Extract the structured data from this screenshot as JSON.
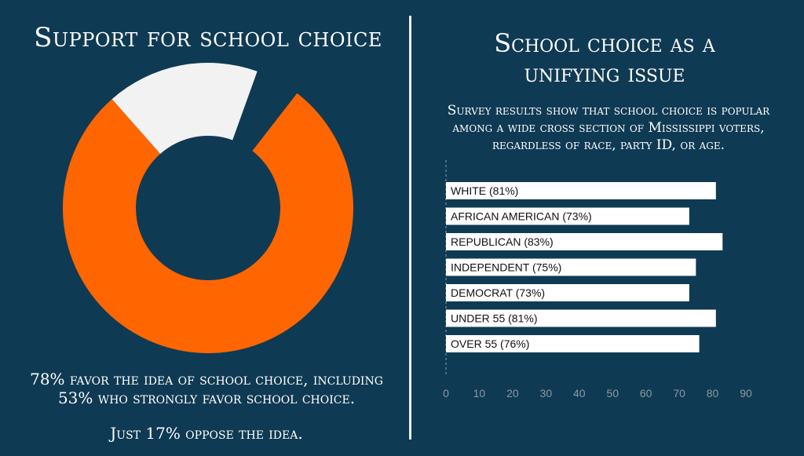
{
  "left": {
    "title": "Support for school choice",
    "caption_line1": "78% favor the idea of school choice, including",
    "caption_line2": "53% who strongly favor school choice.",
    "caption_oppose": "Just 17% oppose the idea."
  },
  "right": {
    "title_line1": "School choice as a",
    "title_line2": "unifying issue",
    "subtitle_line1": "Survey results show that school choice is popular",
    "subtitle_line2": "among a wide cross section of Mississippi voters,",
    "subtitle_line3": "regardless of race, party ID, or age."
  },
  "colors": {
    "background": "#0f3a53",
    "favor": "#ff6600",
    "oppose": "#f2f2f2",
    "bar": "#ffffff"
  },
  "chart_data": [
    {
      "type": "pie",
      "donut": true,
      "slices": [
        {
          "name": "favor",
          "value": 78,
          "color": "#ff6600"
        },
        {
          "name": "oppose",
          "value": 17,
          "color": "#f2f2f2"
        }
      ]
    },
    {
      "type": "bar",
      "orientation": "horizontal",
      "categories": [
        "WHITE (81%)",
        "AFRICAN AMERICAN (73%)",
        "REPUBLICAN (83%)",
        "INDEPENDENT (75%)",
        "DEMOCRAT (73%)",
        "UNDER 55 (81%)",
        "OVER 55 (76%)"
      ],
      "values": [
        81,
        73,
        83,
        75,
        73,
        81,
        76
      ],
      "xlim": [
        0,
        90
      ],
      "xticks": [
        0,
        10,
        20,
        30,
        40,
        50,
        60,
        70,
        80,
        90
      ],
      "grid": false
    }
  ]
}
